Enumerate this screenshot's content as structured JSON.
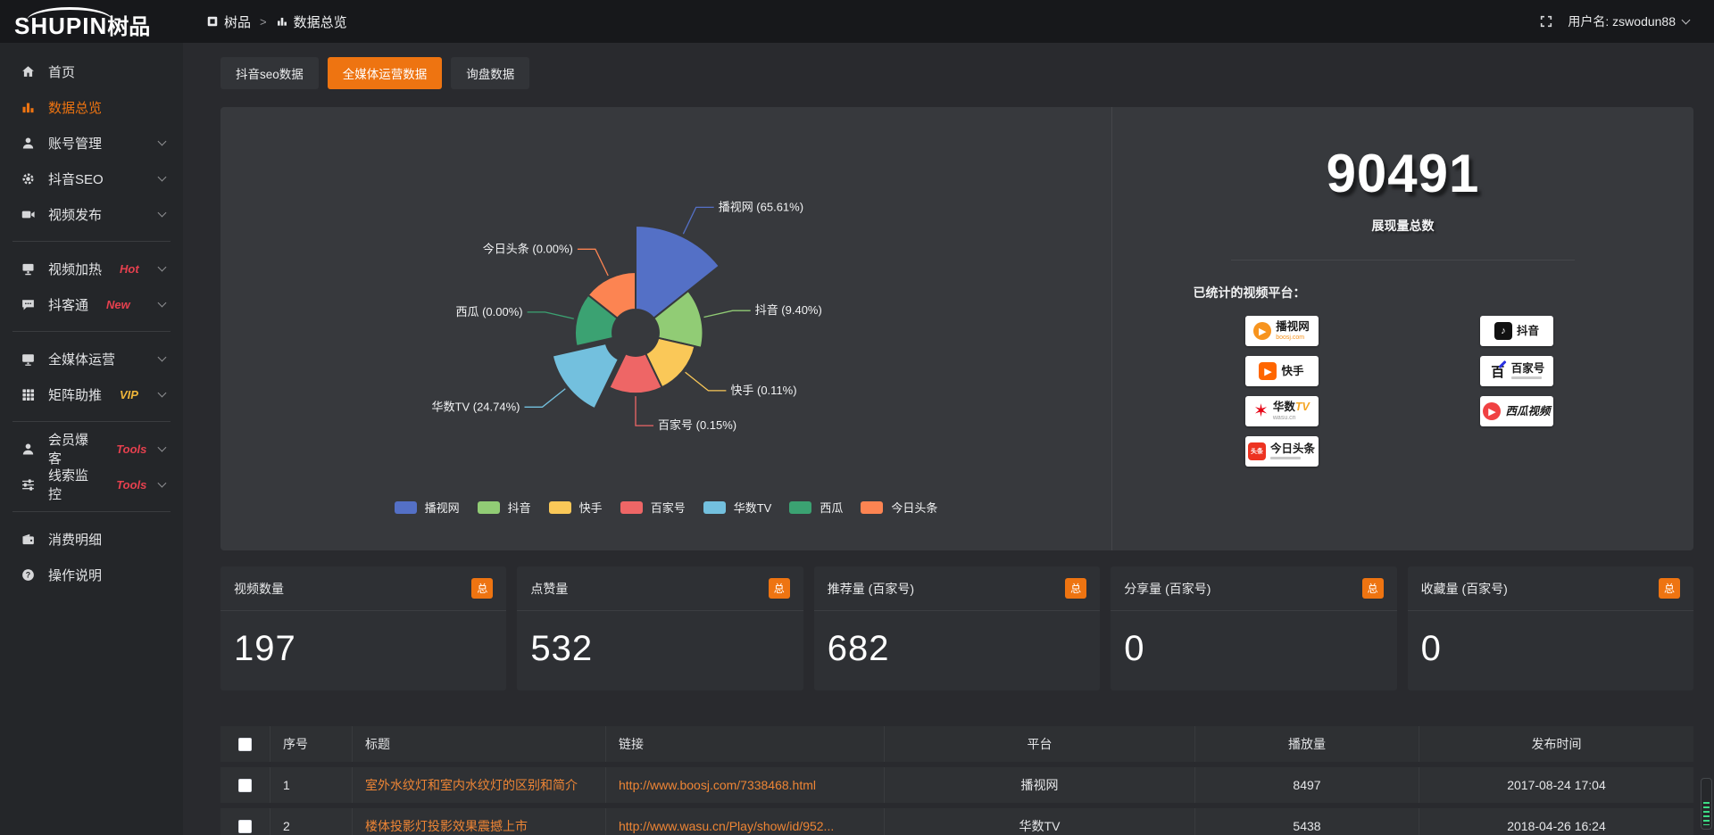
{
  "brand": {
    "logo_text": "SHUPIN",
    "logo_suffix": "树品"
  },
  "topbar": {
    "breadcrumb": [
      {
        "label": "树品",
        "icon": "app-square"
      },
      {
        "label": "数据总览",
        "icon": "chart-bar"
      }
    ],
    "separator": ">",
    "user_label": "用户名: zswodun88"
  },
  "sidebar": {
    "items": [
      {
        "key": "home",
        "icon": "home",
        "label": "首页"
      },
      {
        "key": "data-overview",
        "icon": "chart-bar",
        "label": "数据总览",
        "active": true
      },
      {
        "key": "account-management",
        "icon": "user",
        "label": "账号管理",
        "chevron": true
      },
      {
        "key": "douyin-seo",
        "icon": "gear",
        "label": "抖音SEO",
        "chevron": true
      },
      {
        "key": "video-publish",
        "icon": "video-upload",
        "label": "视频发布",
        "chevron": true,
        "divider_after": true
      },
      {
        "key": "video-heating",
        "icon": "monitor-hot",
        "label": "视频加热",
        "badge": "Hot",
        "badge_color": "red",
        "chevron": true
      },
      {
        "key": "doukotong",
        "icon": "chat",
        "label": "抖客通",
        "badge": "New",
        "badge_color": "red",
        "chevron": true,
        "divider_after": true
      },
      {
        "key": "omni-media",
        "icon": "monitor",
        "label": "全媒体运营",
        "chevron": true
      },
      {
        "key": "matrix-boost",
        "icon": "grid",
        "label": "矩阵助推",
        "badge": "VIP",
        "badge_color": "yellow",
        "chevron": true,
        "divider_after": true
      },
      {
        "key": "member-baoke",
        "icon": "user",
        "label": "会员爆客",
        "badge": "Tools",
        "badge_color": "red",
        "chevron": true
      },
      {
        "key": "clue-monitor",
        "icon": "sliders",
        "label": "线索监控",
        "badge": "Tools",
        "badge_color": "red",
        "chevron": true,
        "divider_after": true
      },
      {
        "key": "expense-detail",
        "icon": "expense",
        "label": "消费明细"
      },
      {
        "key": "operation-guide",
        "icon": "question",
        "label": "操作说明"
      }
    ]
  },
  "tabs": [
    {
      "key": "douyin-seo-data",
      "label": "抖音seo数据",
      "active": false
    },
    {
      "key": "omni-media-data",
      "label": "全媒体运营数据",
      "active": true
    },
    {
      "key": "inquiry-data",
      "label": "询盘数据",
      "active": false
    }
  ],
  "chart_data": {
    "type": "pie",
    "subtype": "nightingale-rose",
    "legend_position": "bottom",
    "series": [
      {
        "name": "播视网",
        "value_pct": 65.61,
        "label": "播视网 (65.61%)",
        "color": "#5470c6"
      },
      {
        "name": "抖音",
        "value_pct": 9.4,
        "label": "抖音 (9.40%)",
        "color": "#91cc75"
      },
      {
        "name": "快手",
        "value_pct": 0.11,
        "label": "快手 (0.11%)",
        "color": "#fac858"
      },
      {
        "name": "百家号",
        "value_pct": 0.15,
        "label": "百家号 (0.15%)",
        "color": "#ee6666"
      },
      {
        "name": "华数TV",
        "value_pct": 24.74,
        "label": "华数TV (24.74%)",
        "color": "#73c0de"
      },
      {
        "name": "西瓜",
        "value_pct": 0.0,
        "label": "西瓜 (0.00%)",
        "color": "#3ba272"
      },
      {
        "name": "今日头条",
        "value_pct": 0.0,
        "label": "今日头条 (0.00%)",
        "color": "#fc8452"
      }
    ],
    "legend": [
      "播视网",
      "抖音",
      "快手",
      "百家号",
      "华数TV",
      "西瓜",
      "今日头条"
    ]
  },
  "summary": {
    "total_value": "90491",
    "total_label": "展现量总数",
    "platforms_label": "已统计的视频平台：",
    "platforms": [
      {
        "key": "boosj",
        "name": "播视网",
        "sub": "boosj.com",
        "logo_color": "#f7941e",
        "logo_shape": "round",
        "glyph": "▶"
      },
      {
        "key": "douyin",
        "name": "抖音",
        "logo_color": "#111111",
        "logo_shape": "square",
        "glyph": "♪"
      },
      {
        "key": "kuaishou",
        "name": "快手",
        "logo_color": "#ff6600",
        "logo_shape": "square",
        "glyph": "▶"
      },
      {
        "key": "baijiahao",
        "name": "百家号",
        "logo_shape": "bjh",
        "glyph": "百",
        "underline": true
      },
      {
        "key": "wasu",
        "name": "华数",
        "name2": "TV",
        "sub": "wasu.cn",
        "logo_color": "#e60012",
        "logo_shape": "star",
        "glyph": "✶"
      },
      {
        "key": "xigua",
        "name": "西瓜视频",
        "logo_color": "#f04142",
        "logo_shape": "round",
        "glyph": "▶",
        "italic": true
      },
      {
        "key": "toutiao",
        "name": "今日头条",
        "logo_color": "#ed3321",
        "logo_shape": "square",
        "glyph": "头条",
        "underline": true
      }
    ]
  },
  "stat_cards": [
    {
      "label": "视频数量",
      "badge": "总",
      "value": "197"
    },
    {
      "label": "点赞量",
      "badge": "总",
      "value": "532"
    },
    {
      "label": "推荐量 (百家号)",
      "badge": "总",
      "value": "682"
    },
    {
      "label": "分享量 (百家号)",
      "badge": "总",
      "value": "0"
    },
    {
      "label": "收藏量 (百家号)",
      "badge": "总",
      "value": "0"
    }
  ],
  "table": {
    "columns": [
      "",
      "序号",
      "标题",
      "链接",
      "平台",
      "播放量",
      "发布时间"
    ],
    "rows": [
      {
        "index": "1",
        "title": "室外水纹灯和室内水纹灯的区别和简介",
        "link": "http://www.boosj.com/7338468.html",
        "platform": "播视网",
        "plays": "8497",
        "time": "2017-08-24 17:04"
      },
      {
        "index": "2",
        "title": "楼体投影灯投影效果震撼上市",
        "link": "http://www.wasu.cn/Play/show/id/952...",
        "platform": "华数TV",
        "plays": "5438",
        "time": "2018-04-26 16:24"
      }
    ]
  },
  "colors": {
    "accent_orange": "#ee7411",
    "link_orange": "#ee8535",
    "badge_red": "#e5404e",
    "badge_yellow": "#f0b63a",
    "panel_bg": "#37393d"
  }
}
